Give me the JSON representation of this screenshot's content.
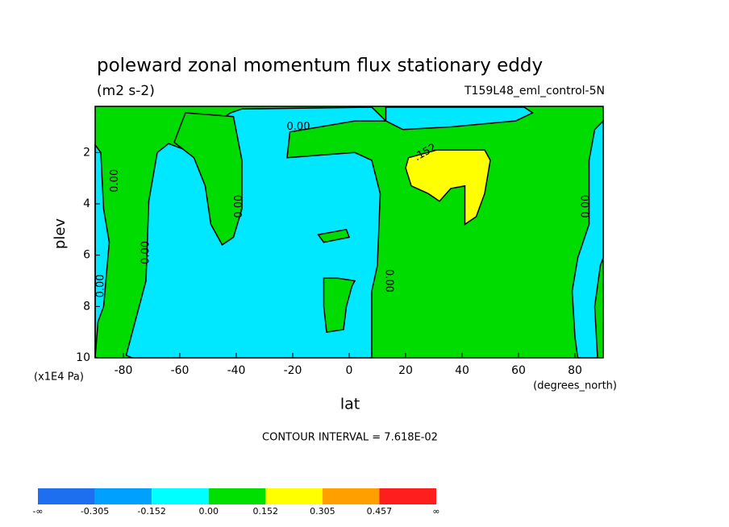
{
  "chart_data": {
    "type": "contour",
    "title": "poleward zonal momentum flux stationary eddy",
    "subtitle": "(m2 s-2)",
    "run_label": "T159L48_eml_control-5N",
    "x_label": "lat",
    "x_units": "(degrees_north)",
    "y_label": "plev",
    "y_units": "(x1E4 Pa)",
    "note": "CONTOUR INTERVAL = 7.618E-02",
    "xlim": [
      -90,
      90
    ],
    "xticks": [
      -80,
      -60,
      -40,
      -20,
      0,
      20,
      40,
      60,
      80
    ],
    "ylim": [
      10,
      0.2
    ],
    "yticks": [
      2,
      4,
      6,
      8,
      10
    ],
    "regions": [
      {
        "color": "#00dc00",
        "lat": [
          -90,
          90,
          90,
          -90
        ],
        "plev": [
          0.2,
          0.2,
          10,
          10
        ]
      },
      {
        "color": "#00e8ff",
        "lat": [
          -42,
          -38,
          8,
          13,
          2,
          -21,
          -22,
          2,
          8,
          11,
          10,
          8,
          8,
          8,
          -77,
          -79,
          -72,
          -71,
          -68,
          -64,
          -58,
          -55,
          -44
        ],
        "plev": [
          0.45,
          0.3,
          0.23,
          0.77,
          0.77,
          1.2,
          2.2,
          2.0,
          2.3,
          3.6,
          6.4,
          7.4,
          8.6,
          10,
          10,
          9.9,
          7.0,
          3.9,
          2.0,
          1.65,
          1.9,
          1.4,
          0.6
        ]
      },
      {
        "color": "#00dc00",
        "lat": [
          -58,
          -41,
          -38,
          -38,
          -41,
          -45,
          -49,
          -51,
          -55,
          -62
        ],
        "plev": [
          0.45,
          0.6,
          2.3,
          4.2,
          5.3,
          5.6,
          4.8,
          3.3,
          2.2,
          1.6
        ]
      },
      {
        "color": "#00e8ff",
        "lat": [
          -90,
          -88,
          -87,
          -85,
          -87,
          -89,
          -90
        ],
        "plev": [
          1.7,
          2.0,
          4.2,
          5.5,
          8.0,
          8.6,
          10
        ]
      },
      {
        "color": "#00e8ff",
        "lat": [
          90,
          87,
          85,
          85,
          81,
          79,
          80,
          81,
          88,
          87,
          89,
          90
        ],
        "plev": [
          0.77,
          1.1,
          2.3,
          4.8,
          6.1,
          7.4,
          9.2,
          10,
          10,
          8.0,
          6.4,
          6.1
        ]
      },
      {
        "color": "#00e8ff",
        "lat": [
          13,
          62,
          65,
          59,
          36,
          19,
          13
        ],
        "plev": [
          0.23,
          0.23,
          0.45,
          0.77,
          1.0,
          1.1,
          0.77
        ]
      },
      {
        "color": "#00dc00",
        "lat": [
          -11,
          -1,
          0,
          -9
        ],
        "plev": [
          5.2,
          5.0,
          5.3,
          5.5
        ]
      },
      {
        "color": "#00dc00",
        "lat": [
          -9,
          -4,
          2,
          1,
          -1,
          -2,
          -8,
          -9
        ],
        "plev": [
          6.9,
          6.9,
          7.0,
          7.2,
          8.0,
          8.9,
          9.0,
          8.0
        ]
      },
      {
        "color": "#ffff00",
        "lat": [
          21,
          31,
          48,
          50,
          48,
          45,
          41,
          41,
          36,
          32,
          28,
          22,
          20
        ],
        "plev": [
          2.2,
          1.9,
          1.9,
          2.3,
          3.6,
          4.5,
          4.8,
          3.3,
          3.4,
          3.9,
          3.6,
          3.3,
          2.6
        ]
      }
    ],
    "contour_labels": [
      {
        "text": "0.00",
        "lat": -18,
        "plev": 1.0
      },
      {
        "text": ".152",
        "lat": 27,
        "plev": 2.0
      },
      {
        "text": "0.00",
        "lat": -83,
        "plev": 3.1
      },
      {
        "text": "0.00",
        "lat": -39,
        "plev": 4.1
      },
      {
        "text": "0.00",
        "lat": -72,
        "plev": 5.9
      },
      {
        "text": "0.00",
        "lat": -88,
        "plev": 7.2
      },
      {
        "text": "0.00",
        "lat": 14,
        "plev": 7.0
      },
      {
        "text": "0.00",
        "lat": 84,
        "plev": 4.1
      }
    ],
    "colorbar": {
      "colors": [
        "#1e6ef0",
        "#00a0ff",
        "#00ffff",
        "#00e000",
        "#ffff00",
        "#ffa000",
        "#ff1e1e"
      ],
      "ticks": [
        {
          "label": "-∞"
        },
        -0.305,
        -0.152,
        {
          "value": 0,
          "label": "0.00"
        },
        0.152,
        0.305,
        0.457,
        {
          "label": "∞"
        }
      ]
    }
  }
}
